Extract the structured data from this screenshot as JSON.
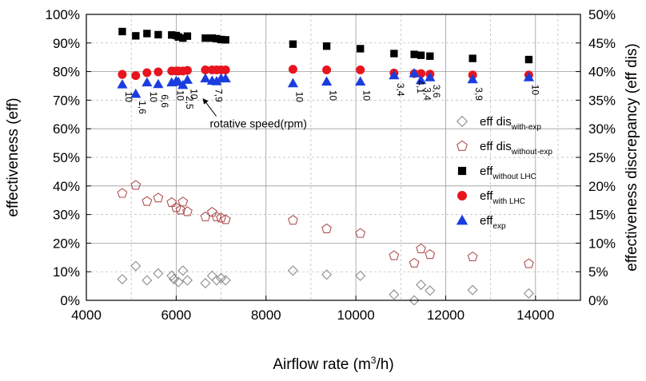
{
  "chart_data": {
    "type": "scatter",
    "xlabel": "Airflow rate (m",
    "xlabel_sup": "3",
    "xlabel_tail": "/h)",
    "ylabel": "effectiveness (eff)",
    "ylabel_right": "effectiveness discrepancy (eff dis)",
    "xlim": [
      4000,
      15000
    ],
    "ylim": [
      0,
      100
    ],
    "ylim_right": [
      0,
      50
    ],
    "x_ticks": [
      4000,
      6000,
      8000,
      10000,
      12000,
      14000
    ],
    "y_ticks": [
      0,
      10,
      20,
      30,
      40,
      50,
      60,
      70,
      80,
      90,
      100
    ],
    "y_ticks_right": [
      0,
      5,
      10,
      15,
      20,
      25,
      30,
      35,
      40,
      45,
      50
    ],
    "y_tick_suffix": "%",
    "grid": true,
    "legend_position": "right",
    "series": [
      {
        "id": "dis_with_exp",
        "name": "eff dis",
        "name_sub": "with-exp",
        "marker": "diamond-open",
        "color": "#8c8c8c",
        "axis": "right",
        "x": [
          4800,
          5100,
          5350,
          5600,
          5900,
          5950,
          6050,
          6150,
          6250,
          6650,
          6800,
          6900,
          7000,
          7100,
          8600,
          9350,
          10100,
          10850,
          11300,
          11450,
          11650,
          12600,
          13850
        ],
        "y": [
          3.7,
          6.0,
          3.5,
          4.7,
          4.3,
          3.7,
          3.2,
          5.2,
          3.5,
          3.0,
          4.3,
          3.5,
          3.9,
          3.5,
          5.2,
          4.5,
          4.3,
          1.0,
          0.0,
          2.7,
          1.7,
          1.8,
          1.2
        ]
      },
      {
        "id": "dis_without_exp",
        "name": "eff dis",
        "name_sub": "without-exp",
        "marker": "pentagon-open",
        "color": "#b05050",
        "axis": "right",
        "x": [
          4800,
          5100,
          5350,
          5600,
          5900,
          6000,
          6100,
          6150,
          6250,
          6650,
          6800,
          6900,
          7000,
          7100,
          8600,
          9350,
          10100,
          10850,
          11300,
          11450,
          11650,
          12600,
          13850
        ],
        "y": [
          18.7,
          20.1,
          17.3,
          17.9,
          17.1,
          16.2,
          15.8,
          17.2,
          15.5,
          14.6,
          15.4,
          14.6,
          14.4,
          14.1,
          14.0,
          12.5,
          11.7,
          7.8,
          6.5,
          9.0,
          8.0,
          7.6,
          6.4
        ]
      },
      {
        "id": "eff_without_lhc",
        "name": "eff",
        "name_sub": "without LHC",
        "marker": "square",
        "color": "#000000",
        "axis": "left",
        "x": [
          4800,
          5100,
          5350,
          5600,
          5900,
          6000,
          6050,
          6150,
          6250,
          6650,
          6800,
          6900,
          7000,
          7100,
          8600,
          9350,
          10100,
          10850,
          11300,
          11450,
          11650,
          12600,
          13850
        ],
        "y": [
          94.0,
          92.5,
          93.3,
          92.9,
          92.8,
          92.6,
          92.1,
          91.7,
          92.4,
          91.7,
          91.7,
          91.5,
          91.2,
          91.1,
          89.6,
          88.9,
          88.0,
          86.3,
          86.0,
          85.7,
          85.4,
          84.6,
          84.2
        ]
      },
      {
        "id": "eff_with_lhc",
        "name": "eff",
        "name_sub": "with LHC",
        "marker": "circle",
        "color": "#e8141e",
        "axis": "left",
        "x": [
          4800,
          5100,
          5350,
          5600,
          5900,
          6000,
          6050,
          6150,
          6250,
          6650,
          6800,
          6900,
          7000,
          7100,
          8600,
          9350,
          10100,
          10850,
          11300,
          11450,
          11650,
          12600,
          13850
        ],
        "y": [
          79.0,
          78.6,
          79.6,
          79.9,
          80.2,
          80.2,
          80.2,
          80.2,
          80.4,
          80.6,
          80.6,
          80.6,
          80.6,
          80.6,
          80.8,
          80.6,
          80.6,
          79.5,
          79.3,
          79.3,
          79.1,
          78.8,
          78.8
        ]
      },
      {
        "id": "eff_exp",
        "name": "eff",
        "name_sub": "exp",
        "marker": "triangle",
        "color": "#1a3de0",
        "axis": "left",
        "x": [
          4800,
          5100,
          5350,
          5600,
          5900,
          6000,
          6050,
          6150,
          6250,
          6650,
          6800,
          6900,
          7000,
          7100,
          8600,
          9350,
          10100,
          10850,
          11300,
          11450,
          11650,
          12600,
          13850
        ],
        "y": [
          75.5,
          72.2,
          76.2,
          75.6,
          76.2,
          76.7,
          76.4,
          75.3,
          77.1,
          77.6,
          76.8,
          76.6,
          77.6,
          77.6,
          75.9,
          76.5,
          76.5,
          78.7,
          79.4,
          77.0,
          78.0,
          77.3,
          78.0
        ]
      }
    ],
    "rpm_labels": [
      {
        "text": "10",
        "x": 4800,
        "y": 73.0
      },
      {
        "text": "1,6",
        "x": 5100,
        "y": 69.8
      },
      {
        "text": "10",
        "x": 5350,
        "y": 73.0
      },
      {
        "text": "6,6",
        "x": 5600,
        "y": 72.0
      },
      {
        "text": "10",
        "x": 5950,
        "y": 73.5
      },
      {
        "text": "2,5",
        "x": 6150,
        "y": 71.5
      },
      {
        "text": "10",
        "x": 6250,
        "y": 74.0
      },
      {
        "text": "7,9",
        "x": 6800,
        "y": 74.0
      },
      {
        "text": "10",
        "x": 8600,
        "y": 73.0
      },
      {
        "text": "10",
        "x": 9350,
        "y": 73.5
      },
      {
        "text": "10",
        "x": 10100,
        "y": 73.5
      },
      {
        "text": "3,4",
        "x": 10850,
        "y": 76.0
      },
      {
        "text": "4,1",
        "x": 11300,
        "y": 77.0
      },
      {
        "text": "3,4",
        "x": 11450,
        "y": 74.5
      },
      {
        "text": "3,6",
        "x": 11650,
        "y": 75.5
      },
      {
        "text": "3,9",
        "x": 12600,
        "y": 74.5
      },
      {
        "text": "10",
        "x": 13850,
        "y": 75.5
      }
    ],
    "annotation": {
      "text": "rotative speed(rpm)",
      "x": 6750,
      "y": 60.5,
      "arrow_to": {
        "x": 6600,
        "y": 70.5
      }
    }
  }
}
